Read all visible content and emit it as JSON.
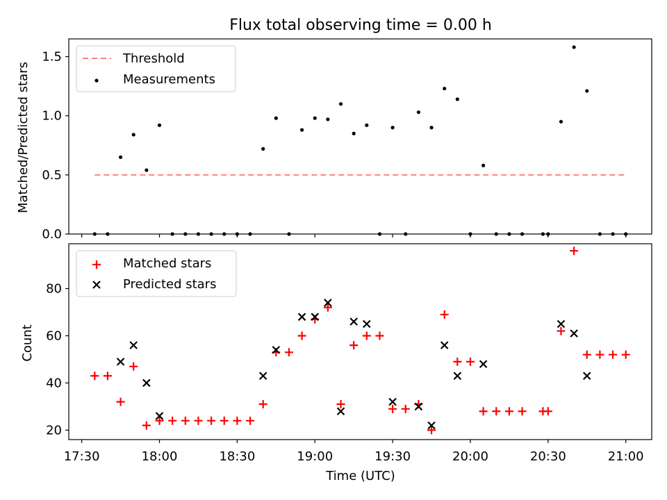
{
  "figure": {
    "title": "Flux total observing time = 0.00 h",
    "xlabel": "Time (UTC)"
  },
  "colors": {
    "threshold": "#ff8080",
    "measurement": "#000000",
    "matched": "#ff0000",
    "predicted": "#000000"
  },
  "chart_data": [
    {
      "type": "scatter",
      "panel": "top",
      "ylabel": "Matched/Predicted stars",
      "xlim": [
        "17:25",
        "21:10"
      ],
      "ylim": [
        0,
        1.65
      ],
      "yticks": [
        0.0,
        0.5,
        1.0,
        1.5
      ],
      "ytick_labels": [
        "0.0",
        "0.5",
        "1.0",
        "1.5"
      ],
      "legend_position": "upper-left",
      "threshold": {
        "name": "Threshold",
        "y": 0.5,
        "x_start": "17:35",
        "x_end": "21:00"
      },
      "measurements": {
        "name": "Measurements",
        "points": [
          [
            "17:35",
            0
          ],
          [
            "17:40",
            0
          ],
          [
            "17:45",
            0.65
          ],
          [
            "17:50",
            0.84
          ],
          [
            "17:55",
            0.54
          ],
          [
            "18:00",
            0.92
          ],
          [
            "18:05",
            0
          ],
          [
            "18:10",
            0
          ],
          [
            "18:15",
            0
          ],
          [
            "18:20",
            0
          ],
          [
            "18:25",
            0
          ],
          [
            "18:30",
            0
          ],
          [
            "18:35",
            0
          ],
          [
            "18:40",
            0.72
          ],
          [
            "18:45",
            0.98
          ],
          [
            "18:50",
            0
          ],
          [
            "18:55",
            0.88
          ],
          [
            "19:00",
            0.98
          ],
          [
            "19:05",
            0.97
          ],
          [
            "19:10",
            1.1
          ],
          [
            "19:15",
            0.85
          ],
          [
            "19:20",
            0.92
          ],
          [
            "19:25",
            0
          ],
          [
            "19:30",
            0.9
          ],
          [
            "19:35",
            0
          ],
          [
            "19:40",
            1.03
          ],
          [
            "19:45",
            0.9
          ],
          [
            "19:50",
            1.23
          ],
          [
            "19:55",
            1.14
          ],
          [
            "20:00",
            0
          ],
          [
            "20:05",
            0.58
          ],
          [
            "20:10",
            0
          ],
          [
            "20:15",
            0
          ],
          [
            "20:20",
            0
          ],
          [
            "20:28",
            0
          ],
          [
            "20:30",
            0
          ],
          [
            "20:35",
            0.95
          ],
          [
            "20:40",
            1.58
          ],
          [
            "20:45",
            1.21
          ],
          [
            "20:50",
            0
          ],
          [
            "20:55",
            0
          ],
          [
            "21:00",
            0
          ]
        ]
      }
    },
    {
      "type": "scatter",
      "panel": "bottom",
      "ylabel": "Count",
      "xlim": [
        "17:25",
        "21:10"
      ],
      "ylim": [
        16,
        99
      ],
      "yticks": [
        20,
        40,
        60,
        80
      ],
      "xticks": [
        "17:30",
        "18:00",
        "18:30",
        "19:00",
        "19:30",
        "20:00",
        "20:30",
        "21:00"
      ],
      "legend_position": "upper-left",
      "series": [
        {
          "name": "Matched stars",
          "marker": "plus",
          "points": [
            [
              "17:35",
              43
            ],
            [
              "17:40",
              43
            ],
            [
              "17:45",
              32
            ],
            [
              "17:50",
              47
            ],
            [
              "17:55",
              22
            ],
            [
              "18:00",
              24
            ],
            [
              "18:05",
              24
            ],
            [
              "18:10",
              24
            ],
            [
              "18:15",
              24
            ],
            [
              "18:20",
              24
            ],
            [
              "18:25",
              24
            ],
            [
              "18:30",
              24
            ],
            [
              "18:35",
              24
            ],
            [
              "18:40",
              31
            ],
            [
              "18:45",
              53
            ],
            [
              "18:50",
              53
            ],
            [
              "18:55",
              60
            ],
            [
              "19:00",
              67
            ],
            [
              "19:05",
              72
            ],
            [
              "19:10",
              31
            ],
            [
              "19:15",
              56
            ],
            [
              "19:20",
              60
            ],
            [
              "19:25",
              60
            ],
            [
              "19:30",
              29
            ],
            [
              "19:35",
              29
            ],
            [
              "19:40",
              31
            ],
            [
              "19:45",
              20
            ],
            [
              "19:50",
              69
            ],
            [
              "19:55",
              49
            ],
            [
              "20:00",
              49
            ],
            [
              "20:05",
              28
            ],
            [
              "20:10",
              28
            ],
            [
              "20:15",
              28
            ],
            [
              "20:20",
              28
            ],
            [
              "20:28",
              28
            ],
            [
              "20:30",
              28
            ],
            [
              "20:35",
              62
            ],
            [
              "20:40",
              96
            ],
            [
              "20:45",
              52
            ],
            [
              "20:50",
              52
            ],
            [
              "20:55",
              52
            ],
            [
              "21:00",
              52
            ]
          ]
        },
        {
          "name": "Predicted stars",
          "marker": "x",
          "points": [
            [
              "17:45",
              49
            ],
            [
              "17:50",
              56
            ],
            [
              "17:55",
              40
            ],
            [
              "18:00",
              26
            ],
            [
              "18:40",
              43
            ],
            [
              "18:45",
              54
            ],
            [
              "18:55",
              68
            ],
            [
              "19:00",
              68
            ],
            [
              "19:05",
              74
            ],
            [
              "19:10",
              28
            ],
            [
              "19:15",
              66
            ],
            [
              "19:20",
              65
            ],
            [
              "19:30",
              32
            ],
            [
              "19:40",
              30
            ],
            [
              "19:45",
              22
            ],
            [
              "19:50",
              56
            ],
            [
              "19:55",
              43
            ],
            [
              "20:05",
              48
            ],
            [
              "20:35",
              65
            ],
            [
              "20:40",
              61
            ],
            [
              "20:45",
              43
            ]
          ]
        }
      ]
    }
  ]
}
